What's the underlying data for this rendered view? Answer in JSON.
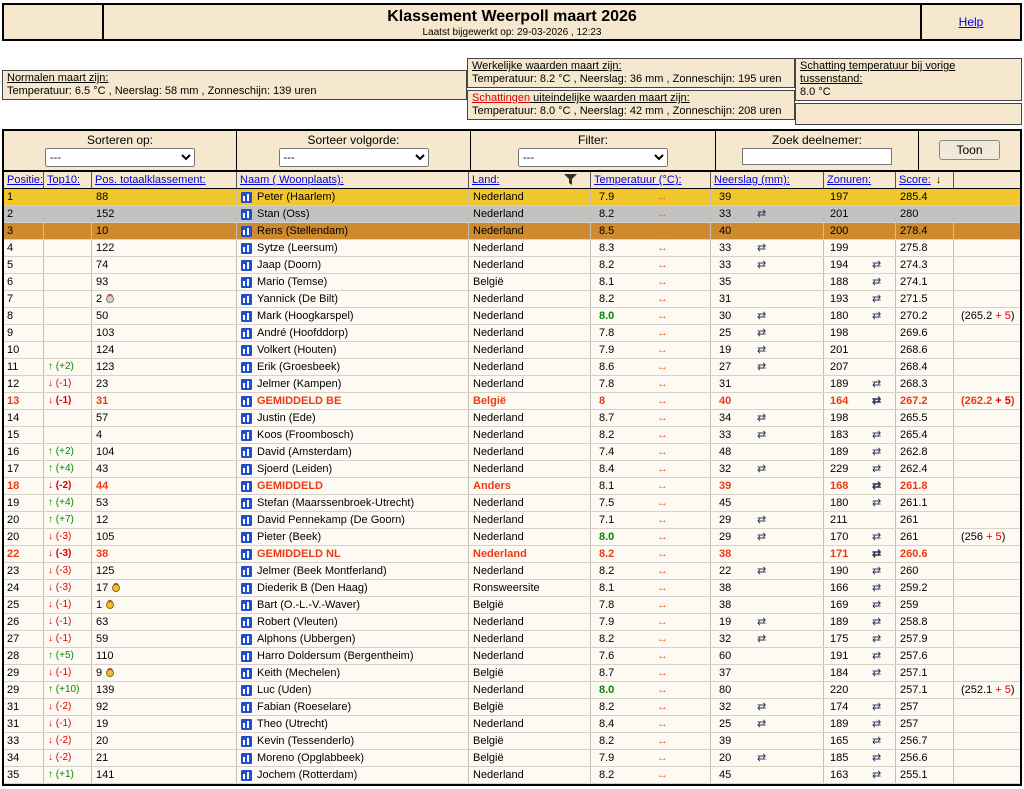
{
  "header": {
    "title": "Klassement Weerpoll maart 2026",
    "subtitle": "Laatst bijgewerkt op: 29-03-2026 , 12:23",
    "help": "Help"
  },
  "info": {
    "normals_label": "Normalen maart zijn:",
    "normals_text": "Temperatuur: 6.5 °C , Neerslag: 58 mm , Zonneschijn: 139 uren",
    "actual_label": "Werkelijke waarden maart zijn:",
    "actual_text": "Temperatuur: 8.2 °C , Neerslag: 36 mm , Zonneschijn: 195 uren",
    "estimate_label_red": "Schattingen",
    "estimate_label_rest": " uiteindelijke waarden maart zijn:",
    "estimate_text": "Temperatuur: 8.0 °C , Neerslag: 42 mm , Zonneschijn: 208 uren",
    "prev_label": "Schatting temperatuur bij vorige tussenstand:",
    "prev_value": "8.0 °C"
  },
  "controls": {
    "sort_label": "Sorteren op:",
    "sort_value": "---",
    "order_label": "Sorteer volgorde:",
    "order_value": "---",
    "filter_label": "Filter:",
    "filter_value": "---",
    "search_label": "Zoek deelnemer:",
    "search_value": "",
    "show_button": "Toon"
  },
  "columns": {
    "pos": "Positie:",
    "top10": "Top10:",
    "total": "Pos. totaalklassement:",
    "name": "Naam ( Woonplaats):",
    "land": "Land:",
    "temp": "Temperatuur (°C):",
    "rain": "Neerslag (mm):",
    "sun": "Zonuren:",
    "score": "Score:"
  },
  "icons": {
    "no_change": "↔",
    "direction": "⇄",
    "up": "↑",
    "down": "↓",
    "sort_desc": "↓",
    "funnel": "filter-funnel",
    "profile": "bar-chart"
  },
  "colors": {
    "tan": "#f6e8cf",
    "gold_row": "#f2c72e",
    "silver_row": "#c2c2c2",
    "bronze_row": "#cd8a2e",
    "accent_red": "#ee3a12",
    "green": "#008a00",
    "arrow_orange": "#f07030",
    "link_blue": "#0000e6"
  },
  "rows": [
    {
      "pos": "1",
      "move": "",
      "dir": "",
      "total": "88",
      "medal": "",
      "name": "Peter (Haarlem)",
      "land": "Nederland",
      "temp": "7.9",
      "temp_style": "",
      "rain": "39",
      "rain_icon": false,
      "sun": "197",
      "sun_icon": false,
      "score": "285.4",
      "bonus_base": "",
      "bonus_add": "",
      "style": "gold"
    },
    {
      "pos": "2",
      "move": "",
      "dir": "",
      "total": "152",
      "medal": "",
      "name": "Stan (Oss)",
      "land": "Nederland",
      "temp": "8.2",
      "temp_style": "",
      "rain": "33",
      "rain_icon": true,
      "sun": "201",
      "sun_icon": false,
      "score": "280",
      "bonus_base": "",
      "bonus_add": "",
      "style": "silver"
    },
    {
      "pos": "3",
      "move": "",
      "dir": "",
      "total": "10",
      "medal": "",
      "name": "Rens (Stellendam)",
      "land": "Nederland",
      "temp": "8.5",
      "temp_style": "",
      "rain": "40",
      "rain_icon": false,
      "sun": "200",
      "sun_icon": false,
      "score": "278.4",
      "bonus_base": "",
      "bonus_add": "",
      "style": "bronze"
    },
    {
      "pos": "4",
      "move": "",
      "dir": "",
      "total": "122",
      "medal": "",
      "name": "Sytze (Leersum)",
      "land": "Nederland",
      "temp": "8.3",
      "temp_style": "",
      "rain": "33",
      "rain_icon": true,
      "sun": "199",
      "sun_icon": false,
      "score": "275.8",
      "bonus_base": "",
      "bonus_add": "",
      "style": ""
    },
    {
      "pos": "5",
      "move": "",
      "dir": "",
      "total": "74",
      "medal": "",
      "name": "Jaap (Doorn)",
      "land": "Nederland",
      "temp": "8.2",
      "temp_style": "",
      "rain": "33",
      "rain_icon": true,
      "sun": "194",
      "sun_icon": true,
      "score": "274.3",
      "bonus_base": "",
      "bonus_add": "",
      "style": ""
    },
    {
      "pos": "6",
      "move": "",
      "dir": "",
      "total": "93",
      "medal": "",
      "name": "Mario (Temse)",
      "land": "België",
      "temp": "8.1",
      "temp_style": "",
      "rain": "35",
      "rain_icon": false,
      "sun": "188",
      "sun_icon": true,
      "score": "274.1",
      "bonus_base": "",
      "bonus_add": "",
      "style": ""
    },
    {
      "pos": "7",
      "move": "",
      "dir": "",
      "total": "2",
      "medal": "silver",
      "name": "Yannick (De Bilt)",
      "land": "Nederland",
      "temp": "8.2",
      "temp_style": "",
      "rain": "31",
      "rain_icon": false,
      "sun": "193",
      "sun_icon": true,
      "score": "271.5",
      "bonus_base": "",
      "bonus_add": "",
      "style": ""
    },
    {
      "pos": "8",
      "move": "",
      "dir": "",
      "total": "50",
      "medal": "",
      "name": "Mark (Hoogkarspel)",
      "land": "Nederland",
      "temp": "8.0",
      "temp_style": "green",
      "rain": "30",
      "rain_icon": true,
      "sun": "180",
      "sun_icon": true,
      "score": "270.2",
      "bonus_base": "265.2",
      "bonus_add": "5",
      "style": ""
    },
    {
      "pos": "9",
      "move": "",
      "dir": "",
      "total": "103",
      "medal": "",
      "name": "André (Hoofddorp)",
      "land": "Nederland",
      "temp": "7.8",
      "temp_style": "",
      "rain": "25",
      "rain_icon": true,
      "sun": "198",
      "sun_icon": false,
      "score": "269.6",
      "bonus_base": "",
      "bonus_add": "",
      "style": ""
    },
    {
      "pos": "10",
      "move": "",
      "dir": "",
      "total": "124",
      "medal": "",
      "name": "Volkert (Houten)",
      "land": "Nederland",
      "temp": "7.9",
      "temp_style": "",
      "rain": "19",
      "rain_icon": true,
      "sun": "201",
      "sun_icon": false,
      "score": "268.6",
      "bonus_base": "",
      "bonus_add": "",
      "style": ""
    },
    {
      "pos": "11",
      "move": "(+2)",
      "dir": "up",
      "total": "123",
      "medal": "",
      "name": "Erik (Groesbeek)",
      "land": "Nederland",
      "temp": "8.6",
      "temp_style": "",
      "rain": "27",
      "rain_icon": true,
      "sun": "207",
      "sun_icon": false,
      "score": "268.4",
      "bonus_base": "",
      "bonus_add": "",
      "style": ""
    },
    {
      "pos": "12",
      "move": "(-1)",
      "dir": "down",
      "total": "23",
      "medal": "",
      "name": "Jelmer (Kampen)",
      "land": "Nederland",
      "temp": "7.8",
      "temp_style": "",
      "rain": "31",
      "rain_icon": false,
      "sun": "189",
      "sun_icon": true,
      "score": "268.3",
      "bonus_base": "",
      "bonus_add": "",
      "style": ""
    },
    {
      "pos": "13",
      "move": "(-1)",
      "dir": "down",
      "total": "31",
      "medal": "",
      "name": "GEMIDDELD BE",
      "land": "België",
      "temp": "8",
      "temp_style": "",
      "rain": "40",
      "rain_icon": false,
      "sun": "164",
      "sun_icon": true,
      "score": "267.2",
      "bonus_base": "262.2",
      "bonus_add": "5",
      "style": "avg"
    },
    {
      "pos": "14",
      "move": "",
      "dir": "",
      "total": "57",
      "medal": "",
      "name": "Justin (Ede)",
      "land": "Nederland",
      "temp": "8.7",
      "temp_style": "",
      "rain": "34",
      "rain_icon": true,
      "sun": "198",
      "sun_icon": false,
      "score": "265.5",
      "bonus_base": "",
      "bonus_add": "",
      "style": ""
    },
    {
      "pos": "15",
      "move": "",
      "dir": "",
      "total": "4",
      "medal": "",
      "name": "Koos (Froombosch)",
      "land": "Nederland",
      "temp": "8.2",
      "temp_style": "",
      "rain": "33",
      "rain_icon": true,
      "sun": "183",
      "sun_icon": true,
      "score": "265.4",
      "bonus_base": "",
      "bonus_add": "",
      "style": ""
    },
    {
      "pos": "16",
      "move": "(+2)",
      "dir": "up",
      "total": "104",
      "medal": "",
      "name": "David (Amsterdam)",
      "land": "Nederland",
      "temp": "7.4",
      "temp_style": "",
      "rain": "48",
      "rain_icon": false,
      "sun": "189",
      "sun_icon": true,
      "score": "262.8",
      "bonus_base": "",
      "bonus_add": "",
      "style": ""
    },
    {
      "pos": "17",
      "move": "(+4)",
      "dir": "up",
      "total": "43",
      "medal": "",
      "name": "Sjoerd (Leiden)",
      "land": "Nederland",
      "temp": "8.4",
      "temp_style": "",
      "rain": "32",
      "rain_icon": true,
      "sun": "229",
      "sun_icon": true,
      "score": "262.4",
      "bonus_base": "",
      "bonus_add": "",
      "style": ""
    },
    {
      "pos": "18",
      "move": "(-2)",
      "dir": "down",
      "total": "44",
      "medal": "",
      "name": "GEMIDDELD",
      "land": "Anders",
      "temp": "8.1",
      "temp_style": "plain",
      "rain": "39",
      "rain_icon": false,
      "sun": "168",
      "sun_icon": true,
      "score": "261.8",
      "bonus_base": "",
      "bonus_add": "",
      "style": "avg"
    },
    {
      "pos": "19",
      "move": "(+4)",
      "dir": "up",
      "total": "53",
      "medal": "",
      "name": "Stefan (Maarssenbroek-Utrecht)",
      "land": "Nederland",
      "temp": "7.5",
      "temp_style": "",
      "rain": "45",
      "rain_icon": false,
      "sun": "180",
      "sun_icon": true,
      "score": "261.1",
      "bonus_base": "",
      "bonus_add": "",
      "style": ""
    },
    {
      "pos": "20",
      "move": "(+7)",
      "dir": "up",
      "total": "12",
      "medal": "",
      "name": "David Pennekamp (De Goorn)",
      "land": "Nederland",
      "temp": "7.1",
      "temp_style": "",
      "rain": "29",
      "rain_icon": true,
      "sun": "211",
      "sun_icon": false,
      "score": "261",
      "bonus_base": "",
      "bonus_add": "",
      "style": ""
    },
    {
      "pos": "20",
      "move": "(-3)",
      "dir": "down",
      "total": "105",
      "medal": "",
      "name": "Pieter (Beek)",
      "land": "Nederland",
      "temp": "8.0",
      "temp_style": "green",
      "rain": "29",
      "rain_icon": true,
      "sun": "170",
      "sun_icon": true,
      "score": "261",
      "bonus_base": "256",
      "bonus_add": "5",
      "style": ""
    },
    {
      "pos": "22",
      "move": "(-3)",
      "dir": "down",
      "total": "38",
      "medal": "",
      "name": "GEMIDDELD NL",
      "land": "Nederland",
      "temp": "8.2",
      "temp_style": "",
      "rain": "38",
      "rain_icon": false,
      "sun": "171",
      "sun_icon": true,
      "score": "260.6",
      "bonus_base": "",
      "bonus_add": "",
      "style": "avg"
    },
    {
      "pos": "23",
      "move": "(-3)",
      "dir": "down",
      "total": "125",
      "medal": "",
      "name": "Jelmer (Beek Montferland)",
      "land": "Nederland",
      "temp": "8.2",
      "temp_style": "",
      "rain": "22",
      "rain_icon": true,
      "sun": "190",
      "sun_icon": true,
      "score": "260",
      "bonus_base": "",
      "bonus_add": "",
      "style": ""
    },
    {
      "pos": "24",
      "move": "(-3)",
      "dir": "down",
      "total": "17",
      "medal": "gold",
      "name": "Diederik B (Den Haag)",
      "land": "Ronsweersite",
      "temp": "8.1",
      "temp_style": "",
      "rain": "38",
      "rain_icon": false,
      "sun": "166",
      "sun_icon": true,
      "score": "259.2",
      "bonus_base": "",
      "bonus_add": "",
      "style": ""
    },
    {
      "pos": "25",
      "move": "(-1)",
      "dir": "down",
      "total": "1",
      "medal": "gold",
      "name": "Bart (O.-L.-V.-Waver)",
      "land": "België",
      "temp": "7.8",
      "temp_style": "",
      "rain": "38",
      "rain_icon": false,
      "sun": "169",
      "sun_icon": true,
      "score": "259",
      "bonus_base": "",
      "bonus_add": "",
      "style": ""
    },
    {
      "pos": "26",
      "move": "(-1)",
      "dir": "down",
      "total": "63",
      "medal": "",
      "name": "Robert (Vleuten)",
      "land": "Nederland",
      "temp": "7.9",
      "temp_style": "",
      "rain": "19",
      "rain_icon": true,
      "sun": "189",
      "sun_icon": true,
      "score": "258.8",
      "bonus_base": "",
      "bonus_add": "",
      "style": ""
    },
    {
      "pos": "27",
      "move": "(-1)",
      "dir": "down",
      "total": "59",
      "medal": "",
      "name": "Alphons (Ubbergen)",
      "land": "Nederland",
      "temp": "8.2",
      "temp_style": "",
      "rain": "32",
      "rain_icon": true,
      "sun": "175",
      "sun_icon": true,
      "score": "257.9",
      "bonus_base": "",
      "bonus_add": "",
      "style": ""
    },
    {
      "pos": "28",
      "move": "(+5)",
      "dir": "up",
      "total": "110",
      "medal": "",
      "name": "Harro Doldersum (Bergentheim)",
      "land": "Nederland",
      "temp": "7.6",
      "temp_style": "",
      "rain": "60",
      "rain_icon": false,
      "sun": "191",
      "sun_icon": true,
      "score": "257.6",
      "bonus_base": "",
      "bonus_add": "",
      "style": ""
    },
    {
      "pos": "29",
      "move": "(-1)",
      "dir": "down",
      "total": "9",
      "medal": "gold",
      "name": "Keith (Mechelen)",
      "land": "België",
      "temp": "8.7",
      "temp_style": "",
      "rain": "37",
      "rain_icon": false,
      "sun": "184",
      "sun_icon": true,
      "score": "257.1",
      "bonus_base": "",
      "bonus_add": "",
      "style": ""
    },
    {
      "pos": "29",
      "move": "(+10)",
      "dir": "up",
      "total": "139",
      "medal": "",
      "name": "Luc (Uden)",
      "land": "Nederland",
      "temp": "8.0",
      "temp_style": "green",
      "rain": "80",
      "rain_icon": false,
      "sun": "220",
      "sun_icon": false,
      "score": "257.1",
      "bonus_base": "252.1",
      "bonus_add": "5",
      "style": ""
    },
    {
      "pos": "31",
      "move": "(-2)",
      "dir": "down",
      "total": "92",
      "medal": "",
      "name": "Fabian (Roeselare)",
      "land": "België",
      "temp": "8.2",
      "temp_style": "",
      "rain": "32",
      "rain_icon": true,
      "sun": "174",
      "sun_icon": true,
      "score": "257",
      "bonus_base": "",
      "bonus_add": "",
      "style": ""
    },
    {
      "pos": "31",
      "move": "(-1)",
      "dir": "down",
      "total": "19",
      "medal": "",
      "name": "Theo (Utrecht)",
      "land": "Nederland",
      "temp": "8.4",
      "temp_style": "",
      "rain": "25",
      "rain_icon": true,
      "sun": "189",
      "sun_icon": true,
      "score": "257",
      "bonus_base": "",
      "bonus_add": "",
      "style": ""
    },
    {
      "pos": "33",
      "move": "(-2)",
      "dir": "down",
      "total": "20",
      "medal": "",
      "name": "Kevin (Tessenderlo)",
      "land": "België",
      "temp": "8.2",
      "temp_style": "",
      "rain": "39",
      "rain_icon": false,
      "sun": "165",
      "sun_icon": true,
      "score": "256.7",
      "bonus_base": "",
      "bonus_add": "",
      "style": ""
    },
    {
      "pos": "34",
      "move": "(-2)",
      "dir": "down",
      "total": "21",
      "medal": "",
      "name": "Moreno (Opglabbeek)",
      "land": "België",
      "temp": "7.9",
      "temp_style": "",
      "rain": "20",
      "rain_icon": true,
      "sun": "185",
      "sun_icon": true,
      "score": "256.6",
      "bonus_base": "",
      "bonus_add": "",
      "style": ""
    },
    {
      "pos": "35",
      "move": "(+1)",
      "dir": "up",
      "total": "141",
      "medal": "",
      "name": "Jochem (Rotterdam)",
      "land": "Nederland",
      "temp": "8.2",
      "temp_style": "",
      "rain": "45",
      "rain_icon": false,
      "sun": "163",
      "sun_icon": true,
      "score": "255.1",
      "bonus_base": "",
      "bonus_add": "",
      "style": ""
    }
  ]
}
